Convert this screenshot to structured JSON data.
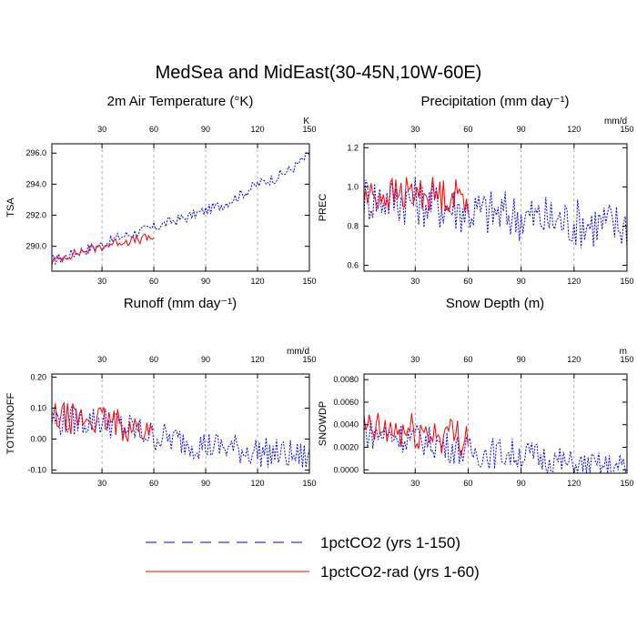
{
  "figure": {
    "title": "MedSea and MidEast(30-45N,10W-60E)"
  },
  "legend": {
    "items": [
      {
        "label": "1pctCO2 (yrs 1-150)",
        "color": "#0000ff",
        "style": "dashed"
      },
      {
        "label": "1pctCO2-rad (yrs 1-60)",
        "color": "#ff0000",
        "style": "solid"
      }
    ]
  },
  "colors": {
    "series_a": "#0000ff",
    "series_b": "#ff0000",
    "top_ticks": "#0000ff",
    "bottom_ticks": "#ff0000"
  },
  "chart_data": [
    {
      "type": "line",
      "title": "2m Air Temperature (°K)",
      "ylabel": "TSA",
      "unit": "K",
      "xlim": [
        1,
        150
      ],
      "ylim": [
        288.4,
        296.6
      ],
      "yticks": [
        290.0,
        292.0,
        294.0,
        296.0
      ],
      "ytick_labels": [
        "290.0",
        "292.0",
        "294.0",
        "296.0"
      ],
      "xticks": [
        30,
        60,
        90,
        120,
        150
      ],
      "xtick_labels": [
        "30",
        "60",
        "90",
        "120",
        "150"
      ],
      "grid": "vertical dashed at x ticks",
      "series": [
        {
          "name": "1pctCO2 (yrs 1-150)",
          "color": "#0000ff",
          "dash": true,
          "x_start": 1,
          "x_end": 150,
          "anchors_x": [
            1,
            10,
            20,
            30,
            40,
            50,
            60,
            70,
            80,
            90,
            100,
            110,
            120,
            130,
            140,
            150
          ],
          "anchors_y": [
            289.1,
            289.4,
            289.8,
            290.1,
            290.6,
            290.9,
            291.2,
            291.6,
            291.9,
            292.3,
            292.7,
            293.3,
            294.0,
            294.4,
            295.0,
            295.9
          ],
          "noise": 0.35
        },
        {
          "name": "1pctCO2-rad (yrs 1-60)",
          "color": "#ff0000",
          "dash": false,
          "x_start": 1,
          "x_end": 60,
          "anchors_x": [
            1,
            10,
            20,
            30,
            40,
            50,
            60
          ],
          "anchors_y": [
            289.0,
            289.4,
            289.7,
            290.0,
            290.3,
            290.4,
            290.6
          ],
          "noise": 0.3
        }
      ]
    },
    {
      "type": "line",
      "title": "Precipitation (mm day⁻¹)",
      "ylabel": "PREC",
      "unit": "mm/d",
      "xlim": [
        1,
        150
      ],
      "ylim": [
        0.57,
        1.22
      ],
      "yticks": [
        0.6,
        0.8,
        1.0,
        1.2
      ],
      "ytick_labels": [
        "0.6",
        "0.8",
        "1.0",
        "1.2"
      ],
      "xticks": [
        30,
        60,
        90,
        120,
        150
      ],
      "xtick_labels": [
        "30",
        "60",
        "90",
        "120",
        "150"
      ],
      "grid": "vertical dashed at x ticks",
      "series": [
        {
          "name": "1pctCO2 (yrs 1-150)",
          "color": "#0000ff",
          "dash": true,
          "x_start": 1,
          "x_end": 150,
          "anchors_x": [
            1,
            30,
            60,
            90,
            120,
            150
          ],
          "anchors_y": [
            0.95,
            0.93,
            0.88,
            0.85,
            0.82,
            0.8
          ],
          "noise": 0.13
        },
        {
          "name": "1pctCO2-rad (yrs 1-60)",
          "color": "#ff0000",
          "dash": false,
          "x_start": 1,
          "x_end": 60,
          "anchors_x": [
            1,
            30,
            60
          ],
          "anchors_y": [
            0.95,
            0.97,
            0.95
          ],
          "noise": 0.09
        }
      ]
    },
    {
      "type": "line",
      "title": "Runoff (mm day⁻¹)",
      "ylabel": "TOTRUNOFF",
      "unit": "mm/d",
      "xlim": [
        1,
        150
      ],
      "ylim": [
        -0.11,
        0.21
      ],
      "yticks": [
        -0.1,
        0.0,
        0.1,
        0.2
      ],
      "ytick_labels": [
        "-0.10",
        "0.00",
        "0.10",
        "0.20"
      ],
      "xticks": [
        30,
        60,
        90,
        120,
        150
      ],
      "xtick_labels": [
        "30",
        "60",
        "90",
        "120",
        "150"
      ],
      "grid": "vertical dashed at x ticks",
      "series": [
        {
          "name": "1pctCO2 (yrs 1-150)",
          "color": "#0000ff",
          "dash": true,
          "x_start": 1,
          "x_end": 150,
          "anchors_x": [
            1,
            30,
            60,
            90,
            120,
            150
          ],
          "anchors_y": [
            0.06,
            0.06,
            0.01,
            -0.02,
            -0.04,
            -0.06
          ],
          "noise": 0.05
        },
        {
          "name": "1pctCO2-rad (yrs 1-60)",
          "color": "#ff0000",
          "dash": false,
          "x_start": 1,
          "x_end": 60,
          "anchors_x": [
            1,
            30,
            60
          ],
          "anchors_y": [
            0.07,
            0.06,
            0.02
          ],
          "noise": 0.05
        }
      ]
    },
    {
      "type": "line",
      "title": "Snow Depth (m)",
      "ylabel": "SNOWDP",
      "unit": "m",
      "xlim": [
        1,
        150
      ],
      "ylim": [
        -0.0003,
        0.0085
      ],
      "yticks": [
        0.0,
        0.002,
        0.004,
        0.006,
        0.008
      ],
      "ytick_labels": [
        "0.0000",
        "0.0020",
        "0.0040",
        "0.0060",
        "0.0080"
      ],
      "xticks": [
        30,
        60,
        90,
        120,
        150
      ],
      "xtick_labels": [
        "30",
        "60",
        "90",
        "120",
        "150"
      ],
      "grid": "vertical dashed at x ticks",
      "series": [
        {
          "name": "1pctCO2 (yrs 1-150)",
          "color": "#0000ff",
          "dash": true,
          "x_start": 1,
          "x_end": 150,
          "anchors_x": [
            1,
            30,
            60,
            90,
            110,
            120,
            150
          ],
          "anchors_y": [
            0.0033,
            0.0028,
            0.0016,
            0.0014,
            0.0008,
            0.0003,
            0.0001
          ],
          "noise": 0.0014
        },
        {
          "name": "1pctCO2-rad (yrs 1-60)",
          "color": "#ff0000",
          "dash": false,
          "x_start": 1,
          "x_end": 60,
          "anchors_x": [
            1,
            30,
            60
          ],
          "anchors_y": [
            0.0035,
            0.0033,
            0.003
          ],
          "noise": 0.0018
        }
      ]
    }
  ]
}
